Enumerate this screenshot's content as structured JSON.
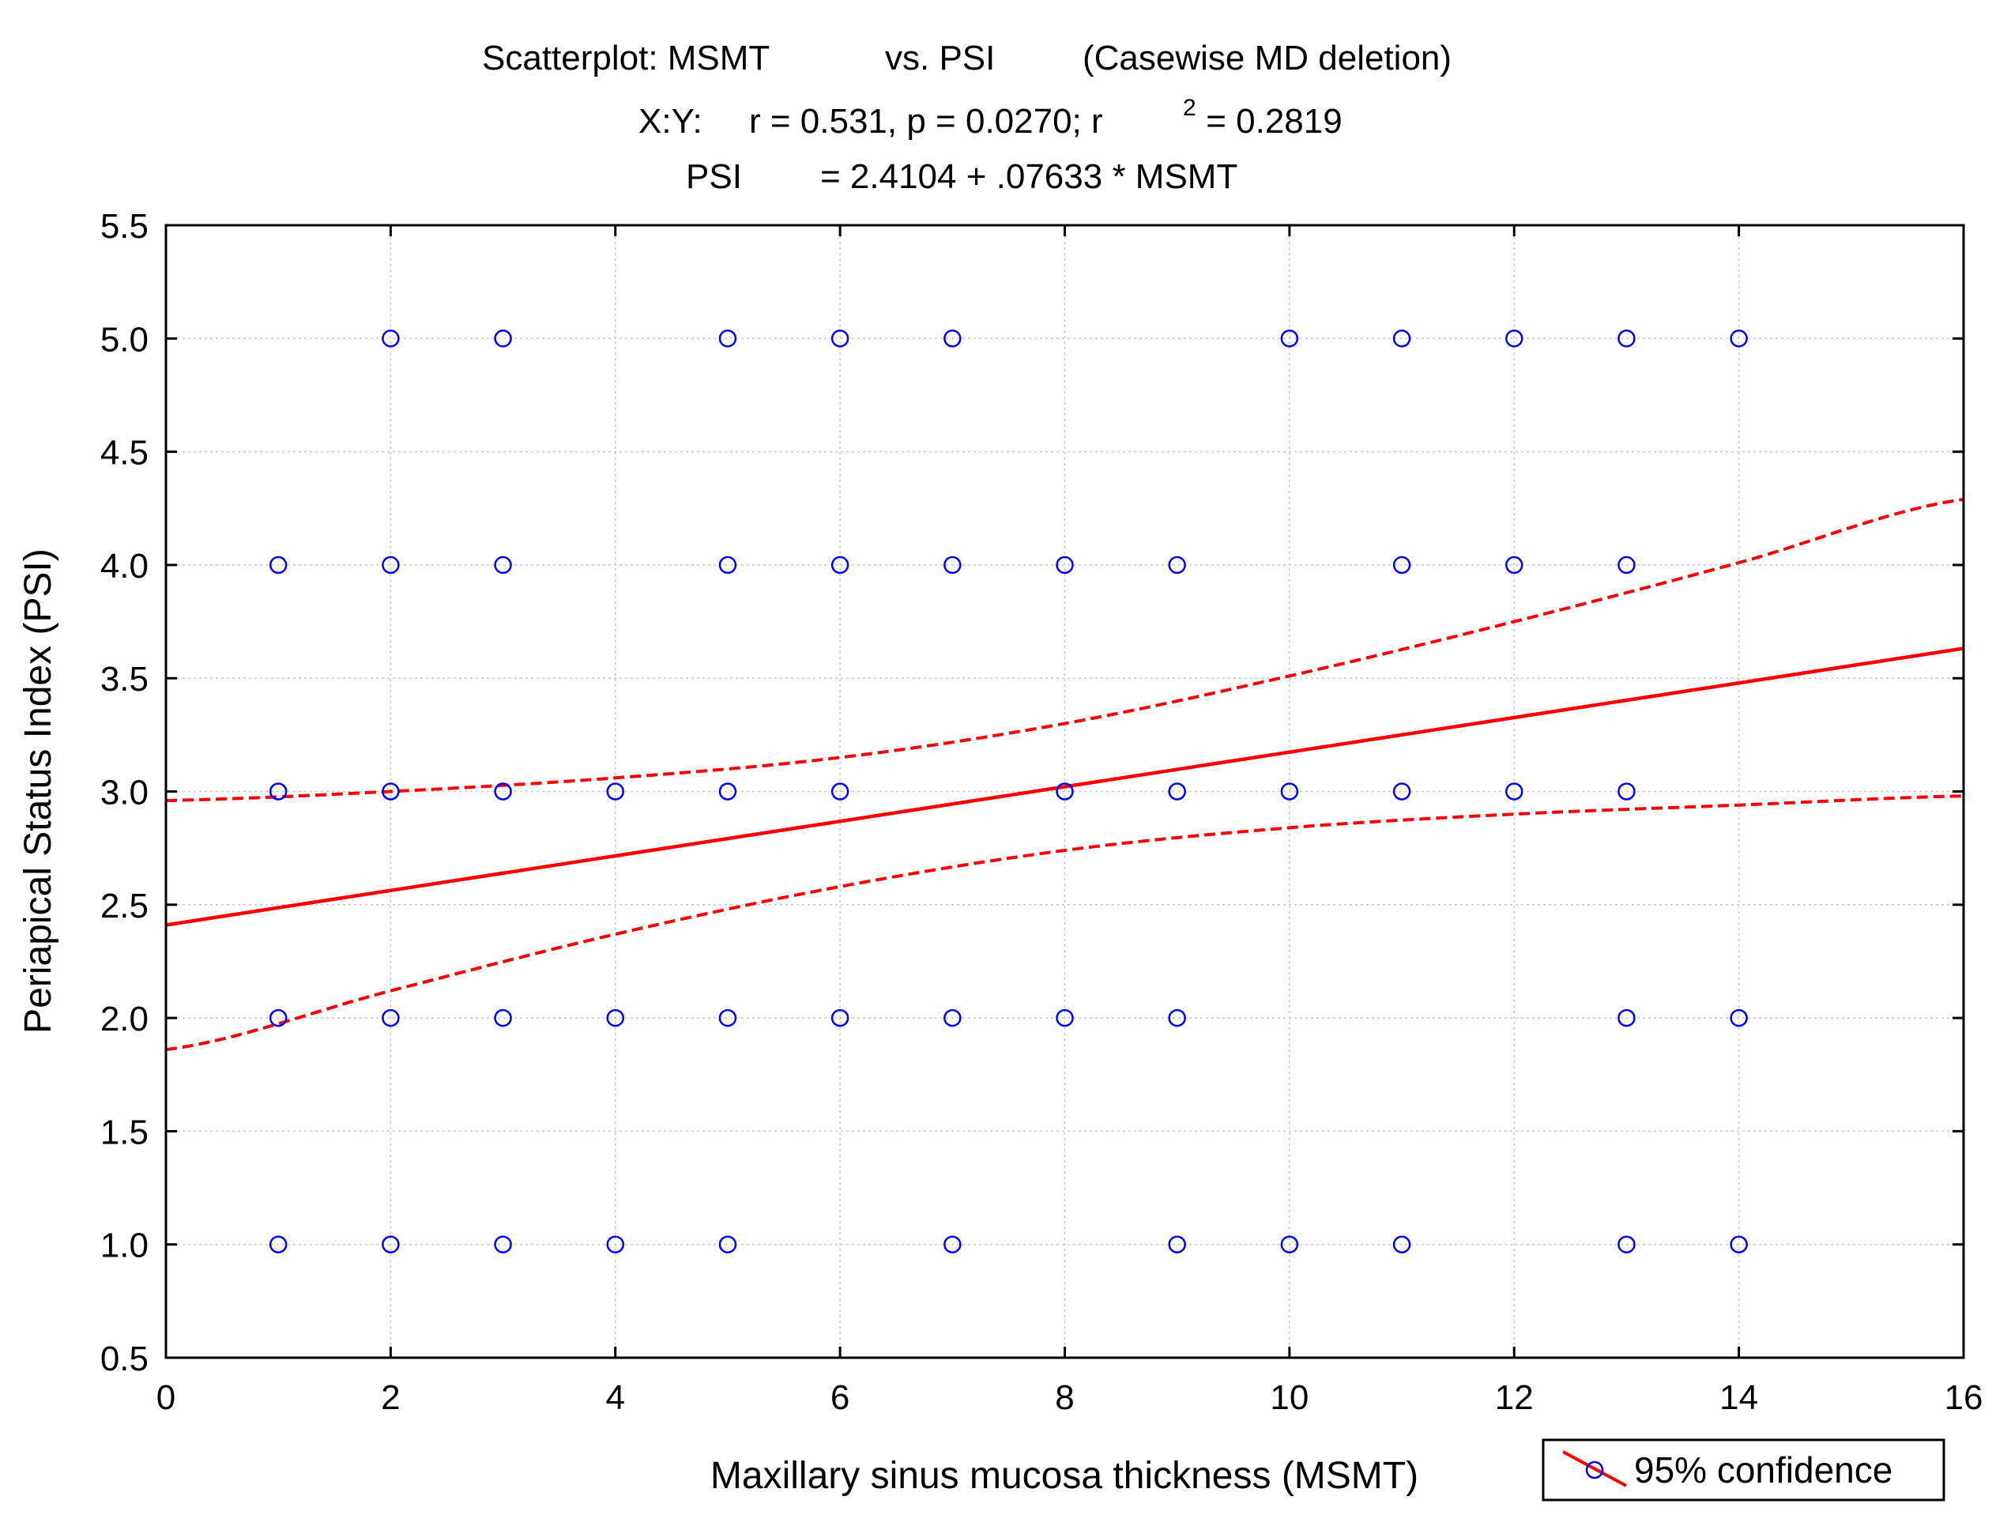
{
  "chart_data": {
    "type": "scatter",
    "title_lines": [
      [
        "Scatterplot: MSMT",
        "vs. PSI",
        "(Casewise MD deletion)"
      ],
      [
        "X:Y:",
        "r = 0.531, p = 0.0270; r",
        "2",
        " = 0.2819"
      ],
      [
        "PSI",
        "= 2.4104 + .07633 * MSMT"
      ]
    ],
    "xlabel": "Maxillary sinus mucosa thickness (MSMT)",
    "ylabel": "Periapical Status Index (PSI)",
    "xlim": [
      0,
      16
    ],
    "ylim": [
      0.5,
      5.5
    ],
    "xticks": [
      0,
      2,
      4,
      6,
      8,
      10,
      12,
      14,
      16
    ],
    "xtick_labels": [
      "0",
      "2",
      "4",
      "6",
      "8",
      "10",
      "12",
      "14",
      "16"
    ],
    "yticks": [
      0.5,
      1.0,
      1.5,
      2.0,
      2.5,
      3.0,
      3.5,
      4.0,
      4.5,
      5.0,
      5.5
    ],
    "ytick_labels": [
      "0.5",
      "1.0",
      "1.5",
      "2.0",
      "2.5",
      "3.0",
      "3.5",
      "4.0",
      "4.5",
      "5.0",
      "5.5"
    ],
    "grid": true,
    "points": [
      [
        2,
        5
      ],
      [
        3,
        5
      ],
      [
        5,
        5
      ],
      [
        6,
        5
      ],
      [
        7,
        5
      ],
      [
        10,
        5
      ],
      [
        11,
        5
      ],
      [
        12,
        5
      ],
      [
        13,
        5
      ],
      [
        14,
        5
      ],
      [
        1,
        4
      ],
      [
        2,
        4
      ],
      [
        3,
        4
      ],
      [
        5,
        4
      ],
      [
        6,
        4
      ],
      [
        7,
        4
      ],
      [
        8,
        4
      ],
      [
        9,
        4
      ],
      [
        11,
        4
      ],
      [
        12,
        4
      ],
      [
        13,
        4
      ],
      [
        1,
        3
      ],
      [
        2,
        3
      ],
      [
        3,
        3
      ],
      [
        4,
        3
      ],
      [
        5,
        3
      ],
      [
        6,
        3
      ],
      [
        8,
        3
      ],
      [
        9,
        3
      ],
      [
        10,
        3
      ],
      [
        11,
        3
      ],
      [
        12,
        3
      ],
      [
        13,
        3
      ],
      [
        1,
        2
      ],
      [
        2,
        2
      ],
      [
        3,
        2
      ],
      [
        4,
        2
      ],
      [
        5,
        2
      ],
      [
        6,
        2
      ],
      [
        7,
        2
      ],
      [
        8,
        2
      ],
      [
        9,
        2
      ],
      [
        13,
        2
      ],
      [
        14,
        2
      ],
      [
        1,
        1
      ],
      [
        2,
        1
      ],
      [
        3,
        1
      ],
      [
        4,
        1
      ],
      [
        5,
        1
      ],
      [
        7,
        1
      ],
      [
        9,
        1
      ],
      [
        10,
        1
      ],
      [
        11,
        1
      ],
      [
        13,
        1
      ],
      [
        14,
        1
      ]
    ],
    "regression": {
      "intercept": 2.4104,
      "slope": 0.07633
    },
    "confidence_upper": [
      [
        0,
        2.96
      ],
      [
        2,
        3.0
      ],
      [
        4,
        3.06
      ],
      [
        6,
        3.15
      ],
      [
        8,
        3.3
      ],
      [
        10,
        3.51
      ],
      [
        12,
        3.75
      ],
      [
        14,
        4.01
      ],
      [
        16,
        4.29
      ]
    ],
    "confidence_lower": [
      [
        0,
        1.86
      ],
      [
        2,
        2.12
      ],
      [
        4,
        2.37
      ],
      [
        6,
        2.58
      ],
      [
        8,
        2.74
      ],
      [
        10,
        2.84
      ],
      [
        12,
        2.9
      ],
      [
        14,
        2.94
      ],
      [
        16,
        2.98
      ]
    ],
    "legend": {
      "label": "95% confidence",
      "position": "bottom-right"
    },
    "colors": {
      "points": "#0000ff",
      "line": "#ff0000",
      "grid": "#c8c8c8",
      "axis": "#000000"
    }
  }
}
